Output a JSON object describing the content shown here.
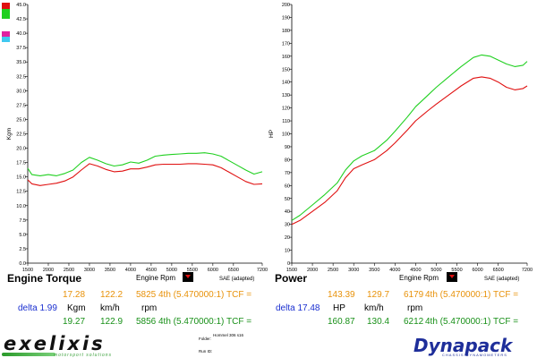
{
  "legend_colors": [
    "#e01010",
    "#20d020",
    "#ffffff",
    "#ffffff",
    "#e020a0",
    "#40c8f0"
  ],
  "chart_data": [
    {
      "type": "line",
      "title": "Engine Torque",
      "xlabel": "Engine Rpm",
      "ylabel": "Kgm",
      "note": "SAE (adapted)",
      "xlim": [
        1500,
        7200
      ],
      "ylim": [
        0,
        45
      ],
      "xticks": [
        "1500",
        "2000",
        "2500",
        "3000",
        "3500",
        "4000",
        "4500",
        "5000",
        "5500",
        "6000",
        "6500",
        "7200"
      ],
      "yticks": [
        "0.0",
        "2.5",
        "5.0",
        "7.5",
        "10.0",
        "12.5",
        "15.0",
        "17.5",
        "20.0",
        "22.5",
        "25.0",
        "27.5",
        "30.0",
        "32.5",
        "35.0",
        "37.5",
        "40.0",
        "42.5",
        "45.0"
      ],
      "series": [
        {
          "name": "run 1",
          "color": "#e01010",
          "x": [
            1500,
            1600,
            1800,
            2000,
            2200,
            2400,
            2600,
            2800,
            3000,
            3200,
            3400,
            3600,
            3800,
            4000,
            4200,
            4400,
            4600,
            4800,
            5000,
            5200,
            5400,
            5600,
            5800,
            6000,
            6200,
            6400,
            6600,
            6800,
            7000,
            7200
          ],
          "y": [
            14.5,
            13.8,
            13.5,
            13.7,
            13.9,
            14.3,
            15.0,
            16.2,
            17.3,
            16.9,
            16.3,
            15.9,
            16.0,
            16.4,
            16.4,
            16.7,
            17.1,
            17.2,
            17.2,
            17.2,
            17.3,
            17.3,
            17.2,
            17.1,
            16.6,
            15.8,
            15.0,
            14.2,
            13.7,
            13.8
          ]
        },
        {
          "name": "run 2",
          "color": "#20d020",
          "x": [
            1500,
            1600,
            1800,
            2000,
            2200,
            2400,
            2600,
            2800,
            3000,
            3200,
            3400,
            3600,
            3800,
            4000,
            4200,
            4400,
            4600,
            4800,
            5000,
            5200,
            5400,
            5600,
            5800,
            6000,
            6200,
            6400,
            6600,
            6800,
            7000,
            7200
          ],
          "y": [
            16.5,
            15.4,
            15.2,
            15.4,
            15.2,
            15.6,
            16.2,
            17.5,
            18.4,
            17.9,
            17.3,
            16.9,
            17.1,
            17.6,
            17.4,
            17.9,
            18.6,
            18.8,
            18.9,
            19.0,
            19.1,
            19.1,
            19.2,
            19.0,
            18.6,
            17.8,
            17.0,
            16.2,
            15.5,
            15.9
          ]
        }
      ]
    },
    {
      "type": "line",
      "title": "Power",
      "xlabel": "Engine Rpm",
      "ylabel": "HP",
      "note": "SAE (adapted)",
      "xlim": [
        1500,
        7200
      ],
      "ylim": [
        0,
        200
      ],
      "xticks": [
        "1500",
        "2000",
        "2500",
        "3000",
        "3500",
        "4000",
        "4500",
        "5000",
        "5500",
        "6000",
        "6500",
        "7200"
      ],
      "yticks": [
        "0",
        "10",
        "20",
        "30",
        "40",
        "50",
        "60",
        "70",
        "80",
        "90",
        "100",
        "110",
        "120",
        "130",
        "140",
        "150",
        "160",
        "170",
        "180",
        "190",
        "200"
      ],
      "series": [
        {
          "name": "run 1",
          "color": "#e01010",
          "x": [
            1500,
            1700,
            2000,
            2300,
            2600,
            2800,
            3000,
            3200,
            3500,
            3800,
            4000,
            4300,
            4500,
            4800,
            5000,
            5300,
            5600,
            5900,
            6100,
            6300,
            6500,
            6700,
            6900,
            7100,
            7200
          ],
          "y": [
            30,
            33,
            40,
            47,
            56,
            66,
            73,
            76,
            80,
            87,
            93,
            103,
            110,
            118,
            123,
            130,
            137,
            143,
            144,
            143,
            140,
            136,
            134,
            135,
            137
          ]
        },
        {
          "name": "run 2",
          "color": "#20d020",
          "x": [
            1500,
            1700,
            2000,
            2300,
            2600,
            2800,
            3000,
            3200,
            3500,
            3800,
            4000,
            4300,
            4500,
            4800,
            5000,
            5300,
            5600,
            5900,
            6100,
            6300,
            6500,
            6700,
            6900,
            7100,
            7200
          ],
          "y": [
            33,
            37,
            45,
            53,
            62,
            72,
            79,
            83,
            87,
            95,
            102,
            113,
            121,
            130,
            136,
            144,
            152,
            159,
            161,
            160,
            157,
            154,
            152,
            153,
            156
          ]
        }
      ]
    }
  ],
  "readout": {
    "torque": {
      "row1": {
        "value": "17.28",
        "speed": "122.2",
        "rpm": "5825",
        "gear": "4th (5.470000:1) TCF ="
      },
      "delta": {
        "label": "delta 1.99",
        "unit": "Kgm",
        "speed_unit": "km/h",
        "rpm_unit": "rpm"
      },
      "row2": {
        "value": "19.27",
        "speed": "122.9",
        "rpm": "5856",
        "gear": "4th (5.470000:1) TCF ="
      }
    },
    "power": {
      "row1": {
        "value": "143.39",
        "speed": "129.7",
        "rpm": "6179",
        "gear": "4th (5.470000:1) TCF ="
      },
      "delta": {
        "label": "delta 17.48",
        "unit": "HP",
        "speed_unit": "km/h",
        "rpm_unit": "rpm"
      },
      "row2": {
        "value": "160.87",
        "speed": "130.4",
        "rpm": "6212",
        "gear": "4th (5.470000:1) TCF ="
      }
    }
  },
  "footer": {
    "brand": "exelixis",
    "brand_sub": "motorsport solutions",
    "folder": "Folder:",
    "filename": "Hommel 306 s16",
    "run_id": "Run ID:",
    "dyno_brand": "Dynapack",
    "dyno_sub": "CHASSIS DYNAMOMETERS"
  }
}
